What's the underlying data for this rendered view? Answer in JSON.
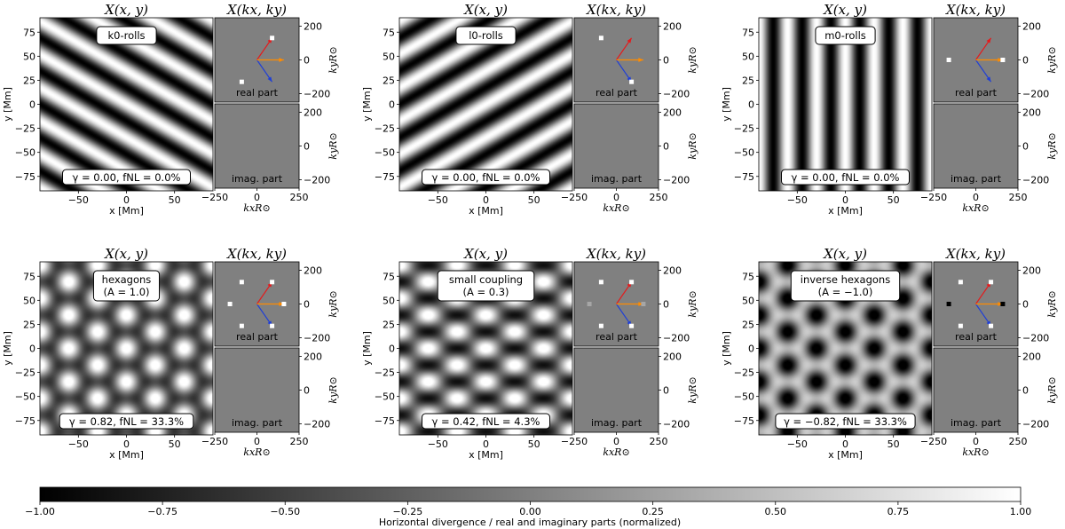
{
  "chart_data": [
    {
      "type": "heatmap",
      "panel": "k0-rolls",
      "pattern_label": "k0-rolls",
      "pattern_label_line2": "",
      "titles": {
        "real_space": "X(x, y)",
        "fourier_space": "X(kx, ky)"
      },
      "params_label": "γ = 0.00, fNL = 0.0%",
      "pattern": {
        "kind": "rolls",
        "direction": "k0"
      },
      "fourier_points": [
        {
          "kx": 90,
          "ky": 130,
          "value": 1.0
        },
        {
          "kx": -90,
          "ky": -130,
          "value": 1.0
        }
      ],
      "imag_points": [],
      "real_part_label": "real part",
      "imag_part_label": "imag. part",
      "xlabel": "x [Mm]",
      "ylabel": "y [Mm]",
      "k_xlabel": "kxR⊙",
      "k_ylabel": "kyR⊙",
      "xlim": [
        -90,
        90
      ],
      "ylim": [
        -90,
        90
      ],
      "klim": [
        -250,
        250
      ],
      "x_ticks": [
        -50,
        0,
        50
      ],
      "y_ticks": [
        75,
        50,
        25,
        0,
        -25,
        -50,
        -75
      ],
      "k_xticks": [
        -250,
        0,
        250
      ],
      "k_yticks": [
        200,
        0,
        -200
      ]
    },
    {
      "type": "heatmap",
      "panel": "l0-rolls",
      "pattern_label": "l0-rolls",
      "pattern_label_line2": "",
      "titles": {
        "real_space": "X(x, y)",
        "fourier_space": "X(kx, ky)"
      },
      "params_label": "γ = 0.00, fNL = 0.0%",
      "pattern": {
        "kind": "rolls",
        "direction": "l0"
      },
      "fourier_points": [
        {
          "kx": 90,
          "ky": -130,
          "value": 1.0
        },
        {
          "kx": -90,
          "ky": 130,
          "value": 1.0
        }
      ],
      "imag_points": [],
      "real_part_label": "real part",
      "imag_part_label": "imag. part",
      "xlabel": "x [Mm]",
      "ylabel": "y [Mm]",
      "k_xlabel": "kxR⊙",
      "k_ylabel": "kyR⊙",
      "xlim": [
        -90,
        90
      ],
      "ylim": [
        -90,
        90
      ],
      "klim": [
        -250,
        250
      ],
      "x_ticks": [
        -50,
        0,
        50
      ],
      "y_ticks": [
        75,
        50,
        25,
        0,
        -25,
        -50,
        -75
      ],
      "k_xticks": [
        -250,
        0,
        250
      ],
      "k_yticks": [
        200,
        0,
        -200
      ]
    },
    {
      "type": "heatmap",
      "panel": "m0-rolls",
      "pattern_label": "m0-rolls",
      "pattern_label_line2": "",
      "titles": {
        "real_space": "X(x, y)",
        "fourier_space": "X(kx, ky)"
      },
      "params_label": "γ = 0.00, fNL = 0.0%",
      "pattern": {
        "kind": "rolls",
        "direction": "m0"
      },
      "fourier_points": [
        {
          "kx": 160,
          "ky": 0,
          "value": 1.0
        },
        {
          "kx": -160,
          "ky": 0,
          "value": 1.0
        }
      ],
      "imag_points": [],
      "real_part_label": "real part",
      "imag_part_label": "imag. part",
      "xlabel": "x [Mm]",
      "ylabel": "y [Mm]",
      "k_xlabel": "kxR⊙",
      "k_ylabel": "kyR⊙",
      "xlim": [
        -90,
        90
      ],
      "ylim": [
        -90,
        90
      ],
      "klim": [
        -250,
        250
      ],
      "x_ticks": [
        -50,
        0,
        50
      ],
      "y_ticks": [
        75,
        50,
        25,
        0,
        -25,
        -50,
        -75
      ],
      "k_xticks": [
        -250,
        0,
        250
      ],
      "k_yticks": [
        200,
        0,
        -200
      ]
    },
    {
      "type": "heatmap",
      "panel": "hexagons",
      "pattern_label": "hexagons",
      "pattern_label_line2": "(A = 1.0)",
      "titles": {
        "real_space": "X(x, y)",
        "fourier_space": "X(kx, ky)"
      },
      "params_label": "γ = 0.82, fNL = 33.3%",
      "pattern": {
        "kind": "hex",
        "amplitude": 1.0
      },
      "fourier_points": [
        {
          "kx": 90,
          "ky": 130,
          "value": 1.0
        },
        {
          "kx": 90,
          "ky": -130,
          "value": 1.0
        },
        {
          "kx": 160,
          "ky": 0,
          "value": 1.0
        },
        {
          "kx": -90,
          "ky": 130,
          "value": 1.0
        },
        {
          "kx": -90,
          "ky": -130,
          "value": 1.0
        },
        {
          "kx": -160,
          "ky": 0,
          "value": 1.0
        }
      ],
      "imag_points": [],
      "real_part_label": "real part",
      "imag_part_label": "imag. part",
      "xlabel": "x [Mm]",
      "ylabel": "y [Mm]",
      "k_xlabel": "kxR⊙",
      "k_ylabel": "kyR⊙",
      "xlim": [
        -90,
        90
      ],
      "ylim": [
        -90,
        90
      ],
      "klim": [
        -250,
        250
      ],
      "x_ticks": [
        -50,
        0,
        50
      ],
      "y_ticks": [
        75,
        50,
        25,
        0,
        -25,
        -50,
        -75
      ],
      "k_xticks": [
        -250,
        0,
        250
      ],
      "k_yticks": [
        200,
        0,
        -200
      ]
    },
    {
      "type": "heatmap",
      "panel": "small-coupling",
      "pattern_label": "small coupling",
      "pattern_label_line2": "(A = 0.3)",
      "titles": {
        "real_space": "X(x, y)",
        "fourier_space": "X(kx, ky)"
      },
      "params_label": "γ = 0.42, fNL = 4.3%",
      "pattern": {
        "kind": "hex",
        "amplitude": 0.3
      },
      "fourier_points": [
        {
          "kx": 90,
          "ky": 130,
          "value": 1.0
        },
        {
          "kx": 90,
          "ky": -130,
          "value": 1.0
        },
        {
          "kx": 160,
          "ky": 0,
          "value": 0.3
        },
        {
          "kx": -90,
          "ky": 130,
          "value": 1.0
        },
        {
          "kx": -90,
          "ky": -130,
          "value": 1.0
        },
        {
          "kx": -160,
          "ky": 0,
          "value": 0.3
        }
      ],
      "imag_points": [],
      "real_part_label": "real part",
      "imag_part_label": "imag. part",
      "xlabel": "x [Mm]",
      "ylabel": "y [Mm]",
      "k_xlabel": "kxR⊙",
      "k_ylabel": "kyR⊙",
      "xlim": [
        -90,
        90
      ],
      "ylim": [
        -90,
        90
      ],
      "klim": [
        -250,
        250
      ],
      "x_ticks": [
        -50,
        0,
        50
      ],
      "y_ticks": [
        75,
        50,
        25,
        0,
        -25,
        -50,
        -75
      ],
      "k_xticks": [
        -250,
        0,
        250
      ],
      "k_yticks": [
        200,
        0,
        -200
      ]
    },
    {
      "type": "heatmap",
      "panel": "inverse-hexagons",
      "pattern_label": "inverse hexagons",
      "pattern_label_line2": "(A = −1.0)",
      "titles": {
        "real_space": "X(x, y)",
        "fourier_space": "X(kx, ky)"
      },
      "params_label": "γ = −0.82, fNL = 33.3%",
      "pattern": {
        "kind": "hex",
        "amplitude": -1.0
      },
      "fourier_points": [
        {
          "kx": 90,
          "ky": 130,
          "value": 1.0
        },
        {
          "kx": 90,
          "ky": -130,
          "value": 1.0
        },
        {
          "kx": 160,
          "ky": 0,
          "value": -1.0
        },
        {
          "kx": -90,
          "ky": 130,
          "value": 1.0
        },
        {
          "kx": -90,
          "ky": -130,
          "value": 1.0
        },
        {
          "kx": -160,
          "ky": 0,
          "value": -1.0
        }
      ],
      "imag_points": [],
      "real_part_label": "real part",
      "imag_part_label": "imag. part",
      "xlabel": "x [Mm]",
      "ylabel": "y [Mm]",
      "k_xlabel": "kxR⊙",
      "k_ylabel": "kyR⊙",
      "xlim": [
        -90,
        90
      ],
      "ylim": [
        -90,
        90
      ],
      "klim": [
        -250,
        250
      ],
      "x_ticks": [
        -50,
        0,
        50
      ],
      "y_ticks": [
        75,
        50,
        25,
        0,
        -25,
        -50,
        -75
      ],
      "k_xticks": [
        -250,
        0,
        250
      ],
      "k_yticks": [
        200,
        0,
        -200
      ]
    }
  ],
  "wavevectors": [
    {
      "name": "k0",
      "kx": 90,
      "ky": 130,
      "color": "#e41a1c"
    },
    {
      "name": "l0",
      "kx": 90,
      "ky": -130,
      "color": "#1f3fd6"
    },
    {
      "name": "m0",
      "kx": 160,
      "ky": 0,
      "color": "#ff8c00"
    }
  ],
  "colorbar": {
    "label": "Horizontal divergence / real and imaginary parts (normalized)",
    "range": [
      -1.0,
      1.0
    ],
    "ticks": [
      "−1.00",
      "−0.75",
      "−0.50",
      "−0.25",
      "0.00",
      "0.25",
      "0.50",
      "0.75",
      "1.00"
    ],
    "colormap": "gray"
  }
}
